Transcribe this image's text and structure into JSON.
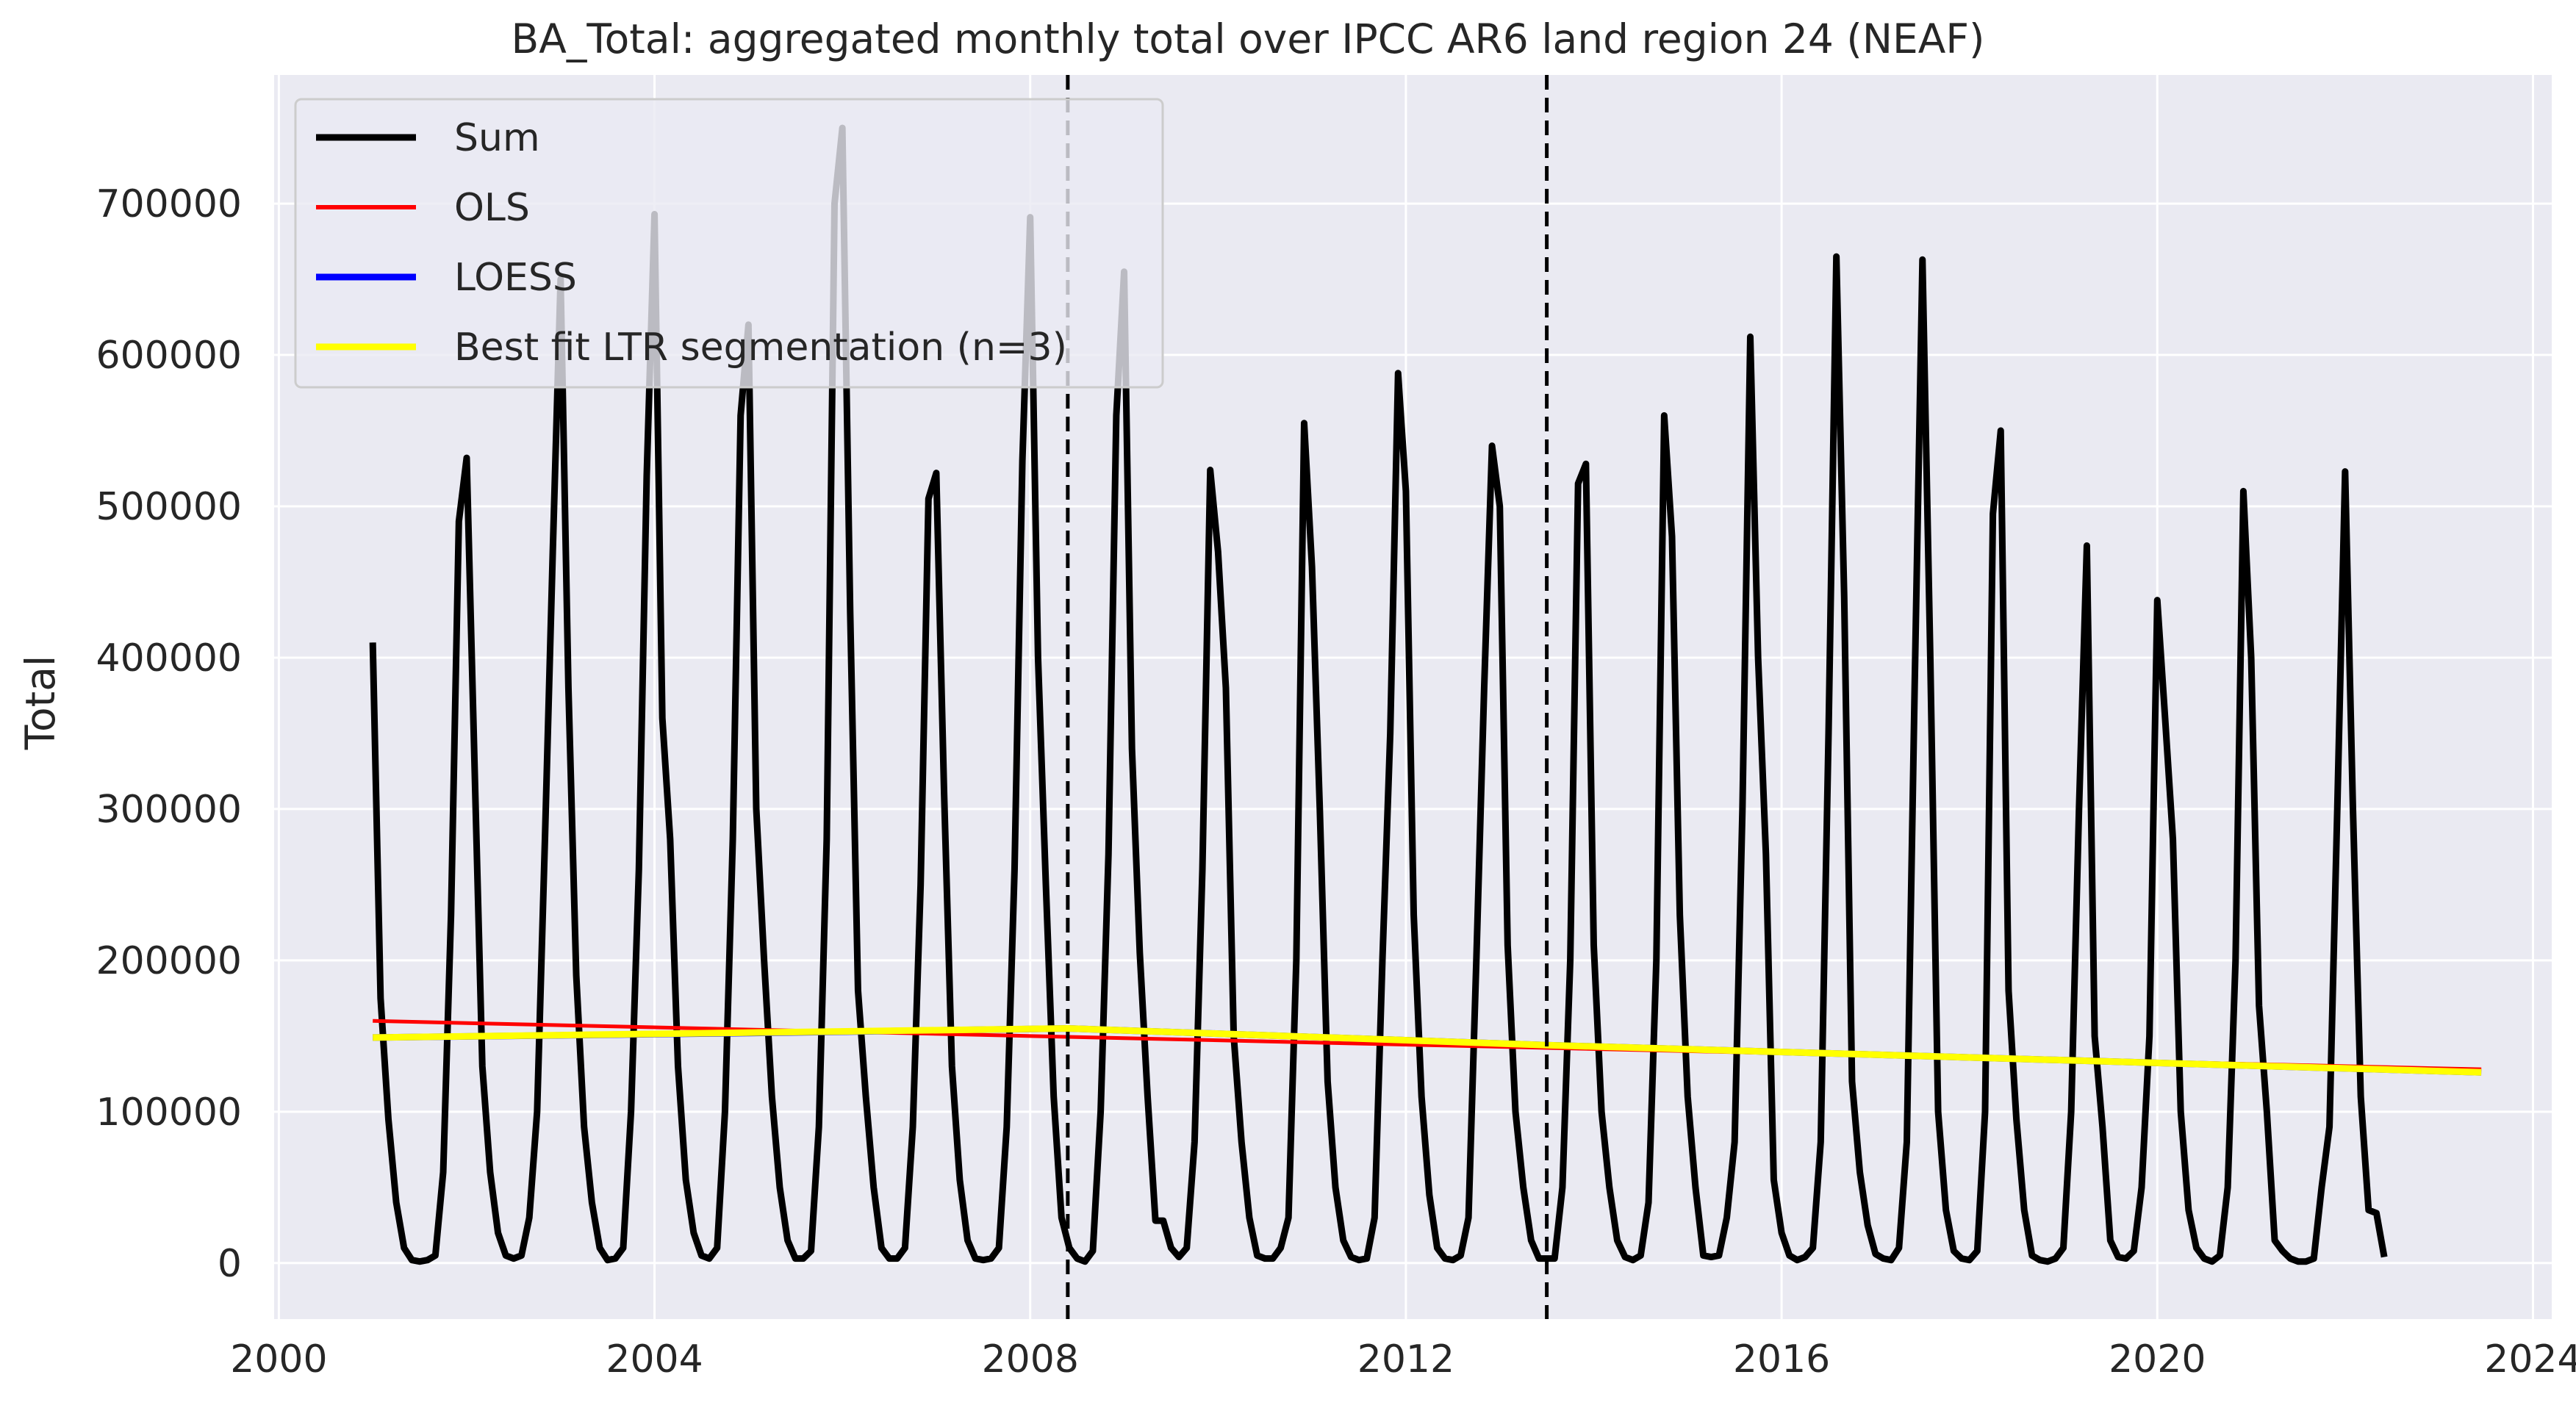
{
  "chart_data": {
    "type": "line",
    "title": "BA_Total: aggregated monthly total over IPCC AR6 land region 24 (NEAF)",
    "xlabel": "",
    "ylabel": "Total",
    "xlim": [
      1999.95,
      2024.2
    ],
    "ylim": [
      -37000,
      785000
    ],
    "x_ticks": [
      "2000",
      "2004",
      "2008",
      "2012",
      "2016",
      "2020",
      "2024"
    ],
    "y_ticks": [
      "0",
      "100000",
      "200000",
      "300000",
      "400000",
      "500000",
      "600000",
      "700000"
    ],
    "grid": true,
    "background": "#eaeaf2",
    "legend_position": "upper-left",
    "vertical_lines": [
      2008.4,
      2013.5
    ],
    "series": [
      {
        "name": "Sum",
        "color": "#000000",
        "start": 2001.0,
        "step_months": 1,
        "values": [
          410000,
          175000,
          95000,
          40000,
          10000,
          2000,
          1000,
          2000,
          5000,
          60000,
          230000,
          490000,
          532000,
          330000,
          130000,
          60000,
          20000,
          5000,
          3000,
          5000,
          30000,
          100000,
          280000,
          470000,
          650000,
          380000,
          190000,
          90000,
          40000,
          10000,
          2000,
          3000,
          10000,
          100000,
          260000,
          520000,
          693000,
          360000,
          280000,
          130000,
          55000,
          20000,
          5000,
          3000,
          10000,
          100000,
          280000,
          560000,
          620000,
          300000,
          200000,
          110000,
          50000,
          15000,
          3000,
          3000,
          8000,
          90000,
          280000,
          700000,
          750000,
          430000,
          180000,
          110000,
          50000,
          10000,
          3000,
          3000,
          10000,
          90000,
          250000,
          505000,
          522000,
          310000,
          130000,
          55000,
          15000,
          3000,
          2000,
          3000,
          10000,
          90000,
          260000,
          530000,
          691000,
          400000,
          250000,
          110000,
          30000,
          10000,
          3000,
          1000,
          8000,
          100000,
          270000,
          560000,
          655000,
          340000,
          205000,
          110000,
          28000,
          28000,
          10000,
          4000,
          10000,
          80000,
          260000,
          524000,
          470000,
          380000,
          150000,
          80000,
          30000,
          5000,
          3000,
          3000,
          10000,
          30000,
          200000,
          555000,
          460000,
          300000,
          120000,
          50000,
          15000,
          4000,
          2000,
          3000,
          30000,
          200000,
          350000,
          588000,
          510000,
          230000,
          110000,
          45000,
          10000,
          3000,
          2000,
          5000,
          30000,
          200000,
          380000,
          540000,
          500000,
          210000,
          100000,
          50000,
          15000,
          3000,
          3000,
          3000,
          50000,
          200000,
          515000,
          528000,
          210000,
          100000,
          50000,
          15000,
          4000,
          2000,
          5000,
          40000,
          200000,
          560000,
          480000,
          230000,
          110000,
          50000,
          5000,
          4000,
          5000,
          30000,
          80000,
          300000,
          612000,
          400000,
          270000,
          55000,
          20000,
          5000,
          2000,
          4000,
          10000,
          80000,
          350000,
          665000,
          440000,
          120000,
          60000,
          25000,
          6000,
          3000,
          2000,
          10000,
          80000,
          380000,
          663000,
          400000,
          100000,
          35000,
          8000,
          3000,
          2000,
          8000,
          100000,
          495000,
          550000,
          180000,
          95000,
          35000,
          5000,
          2000,
          1000,
          3000,
          10000,
          100000,
          300000,
          474000,
          150000,
          90000,
          15000,
          4000,
          3000,
          8000,
          50000,
          150000,
          438000,
          360000,
          280000,
          100000,
          35000,
          10000,
          3000,
          1000,
          5000,
          50000,
          200000,
          510000,
          400000,
          170000,
          100000,
          15000,
          8000,
          3000,
          1000,
          1000,
          3000,
          50000,
          90000,
          300000,
          523000,
          300000,
          110000,
          35000,
          33000,
          4000
        ]
      },
      {
        "name": "OLS",
        "color": "#ff0000",
        "points": [
          [
            2001.0,
            160000
          ],
          [
            2023.45,
            128000
          ]
        ]
      },
      {
        "name": "LOESS",
        "color": "#0000ff",
        "points": [
          [
            2001.0,
            149000
          ],
          [
            2005.0,
            152000
          ],
          [
            2008.4,
            155000
          ],
          [
            2013.5,
            144000
          ],
          [
            2023.45,
            126000
          ]
        ]
      },
      {
        "name": "Best fit LTR segmentation (n=3)",
        "color": "#ffff00",
        "points": [
          [
            2001.0,
            149000
          ],
          [
            2008.4,
            155000
          ],
          [
            2013.5,
            144000
          ],
          [
            2023.45,
            126000
          ]
        ]
      }
    ]
  }
}
